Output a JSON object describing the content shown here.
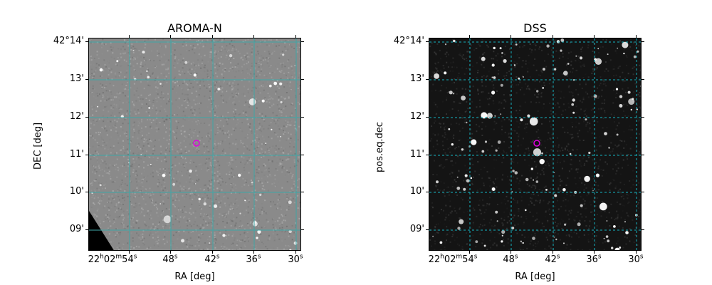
{
  "panels": [
    {
      "id": "aroma",
      "title": "AROMA-N",
      "xlabel": "RA [deg]",
      "ylabel": "DEC [deg]",
      "yticks": [
        "42°14'",
        "13'",
        "12'",
        "11'",
        "10'",
        "09'"
      ],
      "xticks": [
        {
          "main": "22",
          "s1": "h",
          "mid": "02",
          "s2": "m",
          "val": "54",
          "s3": "s"
        },
        {
          "main": "48",
          "s3": "s"
        },
        {
          "main": "42",
          "s3": "s"
        },
        {
          "main": "36",
          "s3": "s"
        },
        {
          "main": "30",
          "s3": "s"
        }
      ],
      "background": "#8a8a8a",
      "grid_color": "#3fa7a7",
      "grid_style": "solid"
    },
    {
      "id": "dss",
      "title": "DSS",
      "xlabel": "RA [deg]",
      "ylabel": "pos.eq.dec",
      "yticks": [
        "42°14'",
        "13'",
        "12'",
        "11'",
        "10'",
        "09'"
      ],
      "xticks": [
        {
          "main": "22",
          "s1": "h",
          "mid": "02",
          "s2": "m",
          "val": "54",
          "s3": "s"
        },
        {
          "main": "48",
          "s3": "s"
        },
        {
          "main": "42",
          "s3": "s"
        },
        {
          "main": "36",
          "s3": "s"
        },
        {
          "main": "30",
          "s3": "s"
        }
      ],
      "background": "#141414",
      "grid_color": "#13b5c2",
      "grid_style": "dashed"
    }
  ],
  "marker_color": "#e000e0"
}
